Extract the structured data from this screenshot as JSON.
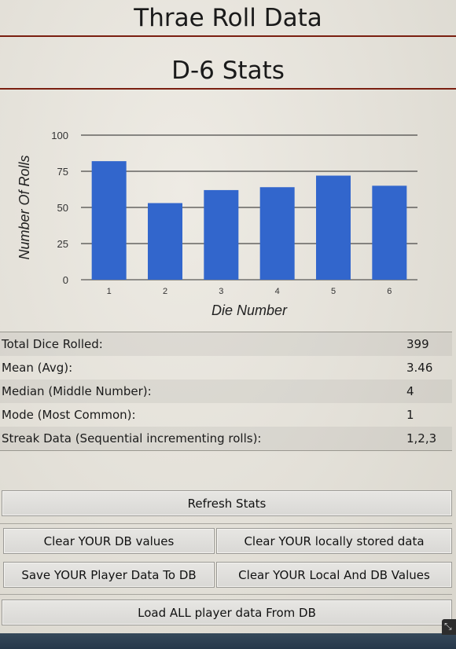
{
  "header": {
    "title": "Thrae Roll Data",
    "subtitle": "D-6 Stats"
  },
  "chart_data": {
    "type": "bar",
    "categories": [
      "1",
      "2",
      "3",
      "4",
      "5",
      "6"
    ],
    "values": [
      82,
      53,
      62,
      64,
      72,
      65
    ],
    "xlabel": "Die Number",
    "ylabel": "Number Of Rolls",
    "ylim": [
      0,
      100
    ],
    "yticks": [
      "0",
      "25",
      "50",
      "75",
      "100"
    ],
    "grid": true,
    "bar_color": "#3266cc"
  },
  "stats": [
    {
      "label": "Total Dice Rolled:",
      "value": "399"
    },
    {
      "label": "Mean (Avg):",
      "value": "3.46"
    },
    {
      "label": "Median (Middle Number):",
      "value": "4"
    },
    {
      "label": "Mode (Most Common):",
      "value": "1"
    },
    {
      "label": "Streak Data (Sequential incrementing rolls):",
      "value": "1,2,3"
    }
  ],
  "buttons": {
    "refresh": "Refresh Stats",
    "clear_db": "Clear YOUR DB values",
    "clear_local": "Clear YOUR locally stored data",
    "save_db": "Save YOUR Player Data To DB",
    "clear_both": "Clear YOUR Local And DB Values",
    "load_all": "Load ALL player data From DB"
  },
  "icons": {
    "corner": "resize-handle-icon"
  }
}
